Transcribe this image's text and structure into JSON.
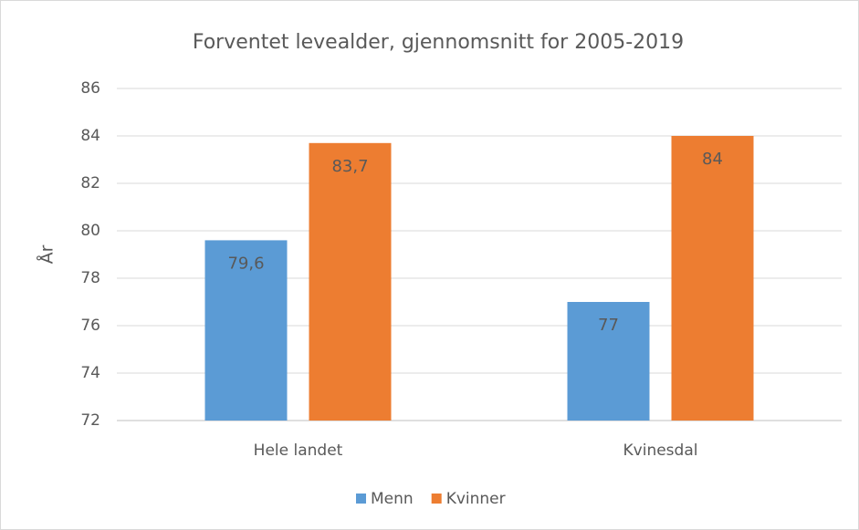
{
  "chart_data": {
    "type": "bar",
    "title": "Forventet levealder, gjennomsnitt for 2005-2019",
    "y_label": "År",
    "categories": [
      "Hele landet",
      "Kvinesdal"
    ],
    "series": [
      {
        "name": "Menn",
        "color": "#5b9bd5",
        "values": [
          79.6,
          77
        ],
        "value_labels": [
          "79,6",
          "77"
        ]
      },
      {
        "name": "Kvinner",
        "color": "#ed7d31",
        "values": [
          83.7,
          84
        ],
        "value_labels": [
          "83,7",
          "84"
        ]
      }
    ],
    "ylim": [
      72,
      86
    ],
    "yticks": [
      72,
      74,
      76,
      78,
      80,
      82,
      84,
      86
    ],
    "grid": true,
    "legend": "bottom"
  }
}
